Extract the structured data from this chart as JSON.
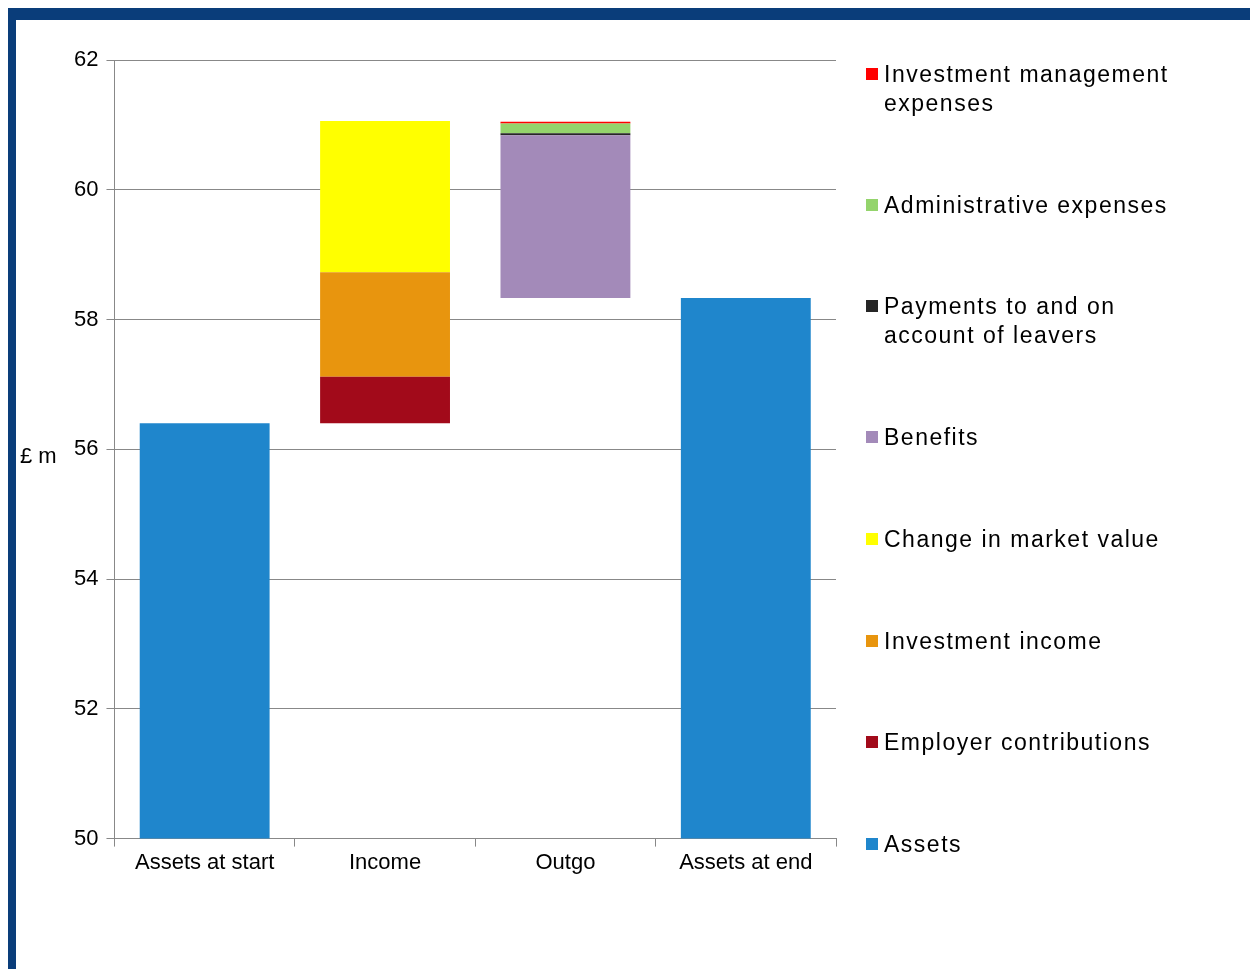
{
  "chart_data": {
    "type": "bar",
    "ylabel": "£ m",
    "categories": [
      "Assets at start",
      "Income",
      "Outgo",
      "Assets at end"
    ],
    "series": [
      {
        "name": "Assets",
        "color": "#1f86cc",
        "values": [
          56.4,
          null,
          null,
          58.33
        ]
      },
      {
        "name": "Employer contributions",
        "color": "#a20a1a",
        "base": [
          null,
          56.4,
          null,
          null
        ],
        "values": [
          null,
          0.72,
          null,
          null
        ]
      },
      {
        "name": "Investment income",
        "color": "#e8950e",
        "base": [
          null,
          57.12,
          null,
          null
        ],
        "values": [
          null,
          1.61,
          null,
          null
        ]
      },
      {
        "name": "Change in market value",
        "color": "#ffff00",
        "base": [
          null,
          58.73,
          null,
          null
        ],
        "values": [
          null,
          2.33,
          null,
          null
        ]
      },
      {
        "name": "Benefits",
        "color": "#a38ab9",
        "base": [
          null,
          null,
          58.33,
          null
        ],
        "values": [
          null,
          null,
          2.51,
          null
        ]
      },
      {
        "name": "Payments to and on account of leavers",
        "color": "#262626",
        "base": [
          null,
          null,
          60.84,
          null
        ],
        "values": [
          null,
          null,
          0.03,
          null
        ]
      },
      {
        "name": "Administrative expenses",
        "color": "#94d46c",
        "base": [
          null,
          null,
          60.87,
          null
        ],
        "values": [
          null,
          null,
          0.15,
          null
        ]
      },
      {
        "name": "Investment management expenses",
        "color": "#ff0000",
        "base": [
          null,
          null,
          61.02,
          null
        ],
        "values": [
          null,
          null,
          0.03,
          null
        ]
      }
    ],
    "ylim": [
      50,
      62
    ],
    "yticks": [
      50,
      52,
      54,
      56,
      58,
      60,
      62
    ],
    "grid": "y",
    "legend": "right"
  }
}
